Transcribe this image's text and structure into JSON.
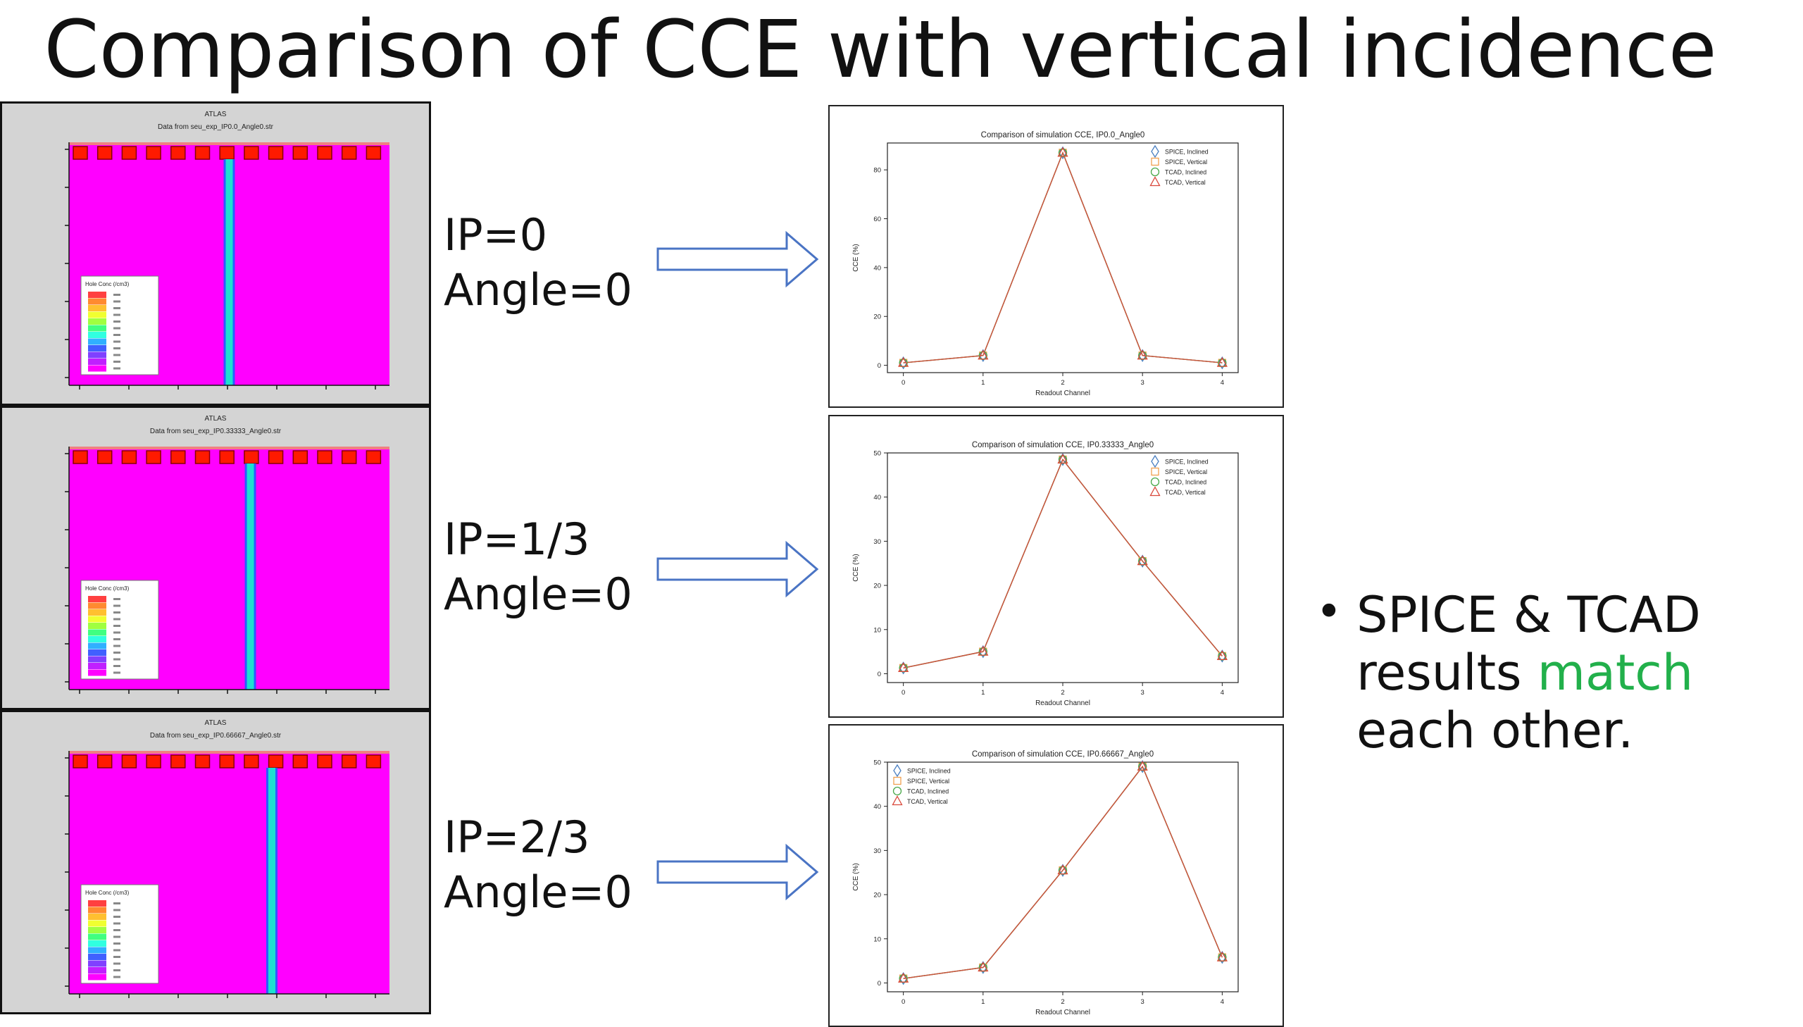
{
  "slide": {
    "title": "Comparison of CCE with vertical incidence",
    "bullet": {
      "part1": "SPICE & TCAD results ",
      "highlight": "match",
      "part2": " each other.",
      "highlight_color": "#22b04b"
    }
  },
  "rows": [
    {
      "ip_label": "IP=0",
      "angle_label": "Angle=0",
      "tcad": {
        "header": "ATLAS",
        "subtitle": "Data from seu_exp_IP0.0_Angle0.str",
        "legend_title": "Hole Conc (/cm3)",
        "stripe_position": 0.5
      }
    },
    {
      "ip_label": "IP=1/3",
      "angle_label": "Angle=0",
      "tcad": {
        "header": "ATLAS",
        "subtitle": "Data from seu_exp_IP0.33333_Angle0.str",
        "legend_title": "Hole Conc (/cm3)",
        "stripe_position": 0.566
      }
    },
    {
      "ip_label": "IP=2/3",
      "angle_label": "Angle=0",
      "tcad": {
        "header": "ATLAS",
        "subtitle": "Data from seu_exp_IP0.66667_Angle0.str",
        "legend_title": "Hole Conc (/cm3)",
        "stripe_position": 0.633
      }
    }
  ],
  "chart_data": [
    {
      "type": "line",
      "title": "Comparison of simulation CCE, IP0.0_Angle0",
      "xlabel": "Readout Channel",
      "ylabel": "CCE (%)",
      "x": [
        0,
        1,
        2,
        3,
        4
      ],
      "xticks": [
        "0",
        "1",
        "2",
        "3",
        "4"
      ],
      "ylim": [
        -3,
        91
      ],
      "yticks": [
        0,
        20,
        40,
        60,
        80
      ],
      "legend_position": "top-right",
      "series": [
        {
          "name": "SPICE, Inclined",
          "marker": "diamond",
          "color": "#4a7fc1",
          "values": [
            1,
            4,
            87,
            4,
            1
          ]
        },
        {
          "name": "SPICE, Vertical",
          "marker": "square",
          "color": "#f0a050",
          "values": [
            1,
            4,
            87,
            4,
            1
          ]
        },
        {
          "name": "TCAD, Inclined",
          "marker": "circle",
          "color": "#4aa84a",
          "values": [
            1,
            4,
            87,
            4,
            1
          ]
        },
        {
          "name": "TCAD, Vertical",
          "marker": "triangle",
          "color": "#d9483b",
          "values": [
            1,
            4,
            87,
            4,
            1
          ]
        }
      ]
    },
    {
      "type": "line",
      "title": "Comparison of simulation CCE, IP0.33333_Angle0",
      "xlabel": "Readout Channel",
      "ylabel": "CCE (%)",
      "x": [
        0,
        1,
        2,
        3,
        4
      ],
      "xticks": [
        "0",
        "1",
        "2",
        "3",
        "4"
      ],
      "ylim": [
        -2,
        50
      ],
      "yticks": [
        0,
        10,
        20,
        30,
        40,
        50
      ],
      "legend_position": "top-right",
      "series": [
        {
          "name": "SPICE, Inclined",
          "marker": "diamond",
          "color": "#4a7fc1",
          "values": [
            1.3,
            5,
            48.5,
            25.5,
            4
          ]
        },
        {
          "name": "SPICE, Vertical",
          "marker": "square",
          "color": "#f0a050",
          "values": [
            1.3,
            5,
            48.5,
            25.5,
            4
          ]
        },
        {
          "name": "TCAD, Inclined",
          "marker": "circle",
          "color": "#4aa84a",
          "values": [
            1.3,
            5,
            48.5,
            25.5,
            4
          ]
        },
        {
          "name": "TCAD, Vertical",
          "marker": "triangle",
          "color": "#d9483b",
          "values": [
            1.3,
            5,
            48.5,
            25.5,
            4
          ]
        }
      ]
    },
    {
      "type": "line",
      "title": "Comparison of simulation CCE, IP0.66667_Angle0",
      "xlabel": "Readout Channel",
      "ylabel": "CCE (%)",
      "x": [
        0,
        1,
        2,
        3,
        4
      ],
      "xticks": [
        "0",
        "1",
        "2",
        "3",
        "4"
      ],
      "ylim": [
        -2,
        50
      ],
      "yticks": [
        0,
        10,
        20,
        30,
        40,
        50
      ],
      "legend_position": "top-left",
      "series": [
        {
          "name": "SPICE, Inclined",
          "marker": "diamond",
          "color": "#4a7fc1",
          "values": [
            1,
            3.5,
            25.5,
            49,
            5.8
          ]
        },
        {
          "name": "SPICE, Vertical",
          "marker": "square",
          "color": "#f0a050",
          "values": [
            1,
            3.5,
            25.5,
            49,
            5.8
          ]
        },
        {
          "name": "TCAD, Inclined",
          "marker": "circle",
          "color": "#4aa84a",
          "values": [
            1,
            3.5,
            25.5,
            49,
            5.8
          ]
        },
        {
          "name": "TCAD, Vertical",
          "marker": "triangle",
          "color": "#d9483b",
          "values": [
            1,
            3.5,
            25.5,
            49,
            5.8
          ]
        }
      ]
    }
  ]
}
